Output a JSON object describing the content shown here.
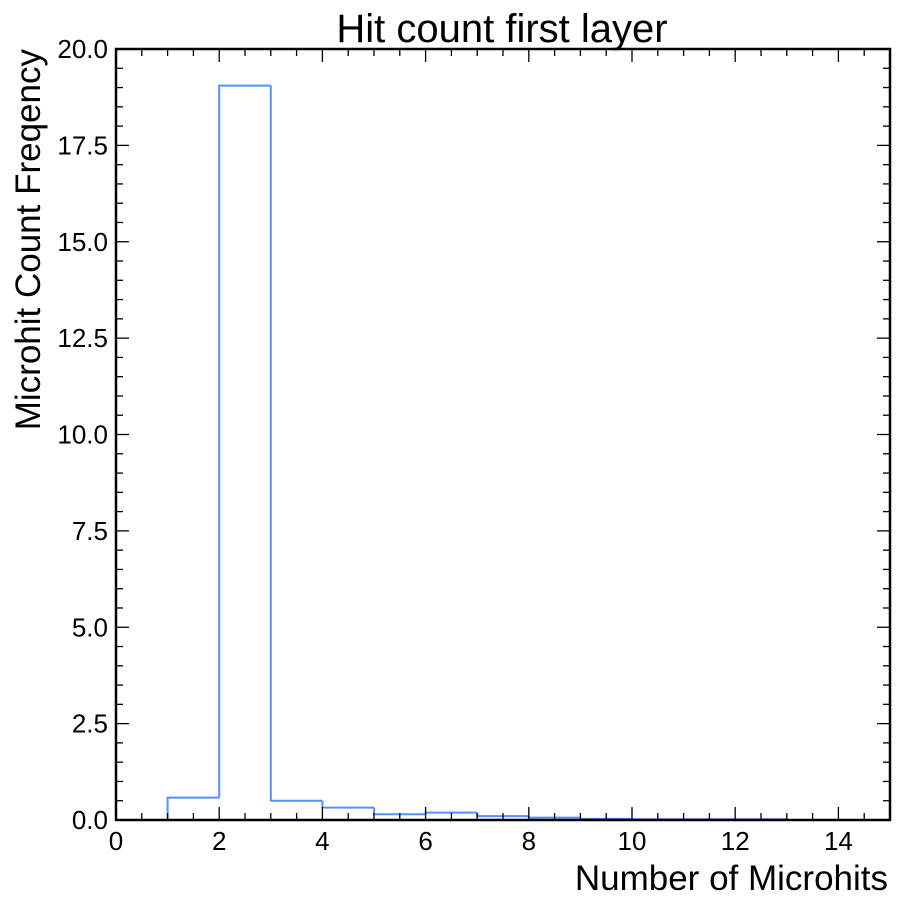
{
  "chart_data": {
    "type": "bar",
    "histtype": "step",
    "title": "Hit count first layer",
    "xlabel": "Number of Microhits",
    "ylabel": "Microhit Count Freqency",
    "xlim": [
      0,
      15
    ],
    "ylim": [
      0,
      20
    ],
    "bin_edges": [
      0,
      1,
      2,
      3,
      4,
      5,
      6,
      7,
      8,
      9,
      10,
      11,
      12,
      13,
      14
    ],
    "values": [
      0.0,
      0.58,
      19.05,
      0.5,
      0.32,
      0.15,
      0.19,
      0.1,
      0.06,
      0.03,
      0.02,
      0.02,
      0.02,
      0.0
    ],
    "x_ticks": [
      "0",
      "2",
      "4",
      "6",
      "8",
      "10",
      "12",
      "14"
    ],
    "y_ticks": [
      "0.0",
      "2.5",
      "5.0",
      "7.5",
      "10.0",
      "12.5",
      "15.0",
      "17.5",
      "20.0"
    ],
    "x_tick_values": [
      0,
      2,
      4,
      6,
      8,
      10,
      12,
      14
    ],
    "y_tick_values": [
      0,
      2.5,
      5,
      7.5,
      10,
      12.5,
      15,
      17.5,
      20
    ],
    "line_color": "#5790fc",
    "grid": false,
    "legend": "none"
  }
}
